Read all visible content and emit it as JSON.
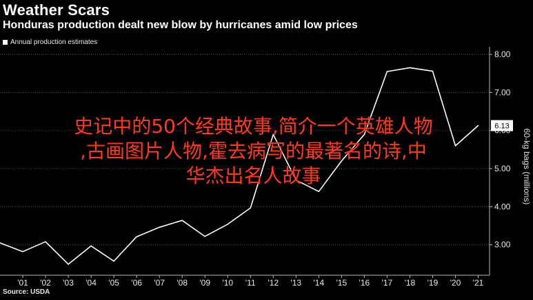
{
  "header": {
    "title": "Weather Scars",
    "subtitle": "Honduras production dealt new blow by hurricanes amid low prices"
  },
  "legend": {
    "label": "Annual production estimates",
    "color": "#ffffff"
  },
  "source": "Source: USDA",
  "overlay": {
    "lines": [
      "史记中的50个经典故事,简介一个英雄人物",
      ",古画图片人物,霍去病写的最著名的诗,中",
      "华杰出名人故事"
    ],
    "color": "#ff3a1a"
  },
  "chart_data": {
    "type": "line",
    "title": "Weather Scars",
    "subtitle": "Honduras production dealt new blow by hurricanes amid low prices",
    "ylabel": "60-kg bags (millions)",
    "xlabel": "",
    "ylim": [
      2.2,
      8.2
    ],
    "y_ticks": [
      3,
      4,
      5,
      6,
      7,
      8
    ],
    "y_tick_labels": [
      "3.00",
      "4.00",
      "5.00",
      "6.00",
      "7.00",
      "8.00"
    ],
    "x_ticks": [
      2001,
      2002,
      2003,
      2004,
      2005,
      2006,
      2007,
      2008,
      2009,
      2010,
      2011,
      2012,
      2013,
      2014,
      2015,
      2016,
      2017,
      2018,
      2019,
      2020,
      2021
    ],
    "x_tick_labels": [
      "'01",
      "'02",
      "'03",
      "'04",
      "'05",
      "'06",
      "'07",
      "'08",
      "'09",
      "'10",
      "'11",
      "'12",
      "'13",
      "'14",
      "'15",
      "'16",
      "'17",
      "'18",
      "'19",
      "'20",
      "'21"
    ],
    "grid": "horizontal",
    "last_value_label": "6.13",
    "series": [
      {
        "name": "Annual production estimates",
        "color": "#ffffff",
        "x": [
          2000,
          2001,
          2002,
          2003,
          2004,
          2005,
          2006,
          2007,
          2008,
          2009,
          2010,
          2011,
          2012,
          2013,
          2014,
          2015,
          2016,
          2017,
          2018,
          2019,
          2020,
          2021
        ],
        "values": [
          3.05,
          2.82,
          3.08,
          2.49,
          2.97,
          2.57,
          3.21,
          3.46,
          3.64,
          3.22,
          3.54,
          3.97,
          5.9,
          4.7,
          4.4,
          5.2,
          5.9,
          7.55,
          7.65,
          7.56,
          5.6,
          6.13
        ]
      }
    ]
  }
}
